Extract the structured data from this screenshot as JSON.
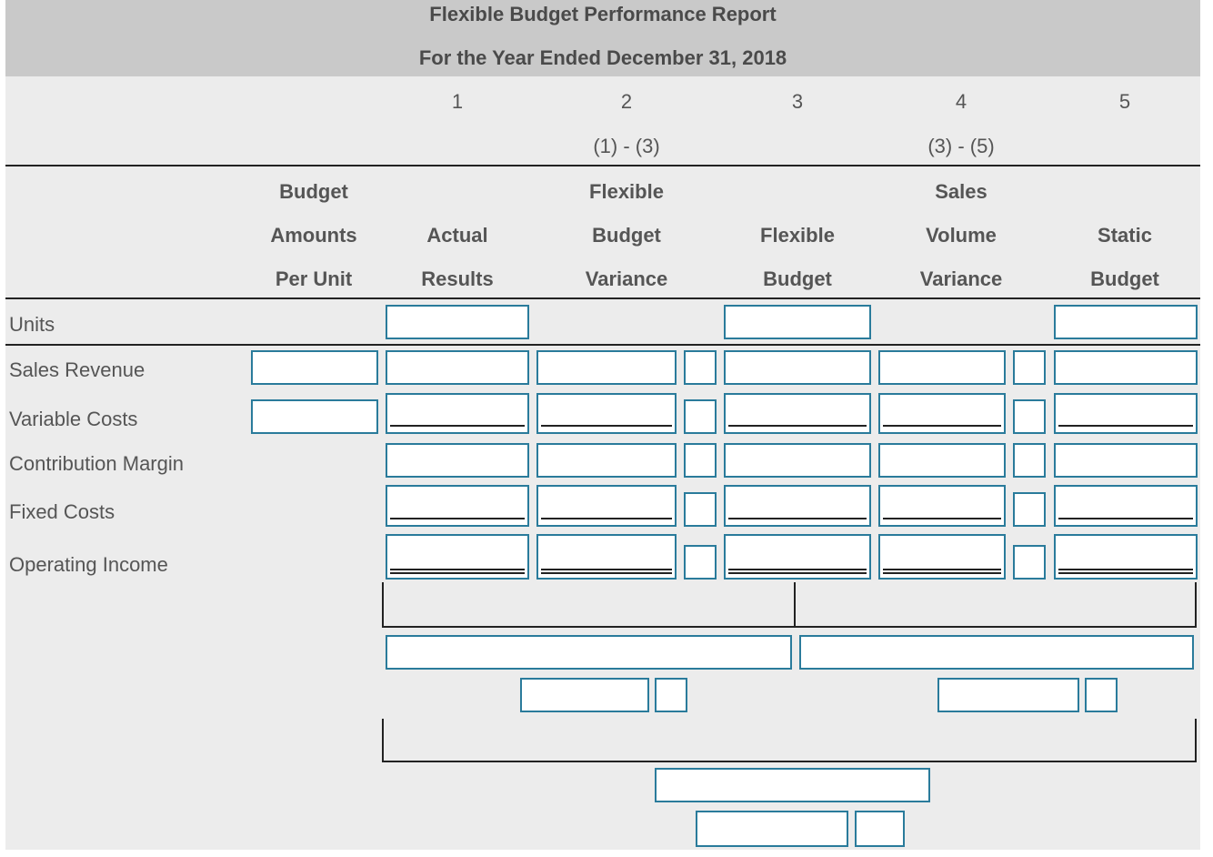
{
  "report": {
    "title": "Flexible Budget Performance Report",
    "subtitle": "For the Year Ended December 31, 2018"
  },
  "columns": {
    "numbers": [
      "1",
      "2",
      "3",
      "4",
      "5"
    ],
    "formulas": {
      "col2": "(1) - (3)",
      "col4": "(3) - (5)"
    },
    "headers": {
      "budget_per_unit": [
        "Budget",
        "Amounts",
        "Per Unit"
      ],
      "actual": [
        "Actual",
        "Results"
      ],
      "flex_variance": [
        "Flexible",
        "Budget",
        "Variance"
      ],
      "flex_budget": [
        "Flexible",
        "Budget"
      ],
      "sales_volume_variance": [
        "Sales",
        "Volume",
        "Variance"
      ],
      "static": [
        "Static",
        "Budget"
      ]
    }
  },
  "rows": [
    "Units",
    "Sales Revenue",
    "Variable Costs",
    "Contribution Margin",
    "Fixed Costs",
    "Operating Income"
  ]
}
